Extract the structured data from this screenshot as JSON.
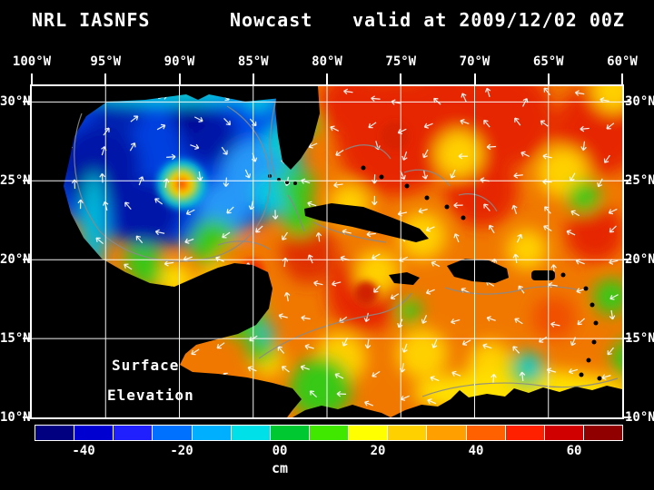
{
  "title": {
    "left": "NRL IASNFS",
    "center": "Nowcast",
    "right": "valid at 2009/12/02 00Z"
  },
  "map": {
    "lon_labels": [
      "100°W",
      "95°W",
      "90°W",
      "85°W",
      "80°W",
      "75°W",
      "70°W",
      "65°W",
      "60°W"
    ],
    "lat_labels": [
      "30°N",
      "25°N",
      "20°N",
      "15°N",
      "10°N"
    ],
    "annotation": {
      "line1": "Surface",
      "line2": "Elevation"
    }
  },
  "colorbar": {
    "unit": "cm",
    "min": -50,
    "max": 70,
    "tick_values": [
      -40,
      -20,
      0,
      20,
      40,
      60
    ],
    "tick_labels": [
      "-40",
      "-20",
      "00",
      "20",
      "40",
      "60"
    ],
    "segments": [
      "#000080",
      "#0000d0",
      "#2020ff",
      "#0070ff",
      "#00b0ff",
      "#00e0e8",
      "#00c830",
      "#40e800",
      "#ffff00",
      "#ffd000",
      "#ffa000",
      "#ff6000",
      "#ff2000",
      "#d00000",
      "#900000"
    ]
  },
  "chart_data": {
    "type": "heatmap",
    "title": "NRL IASNFS Nowcast valid at 2009/12/02 00Z",
    "field": "Surface Elevation",
    "unit": "cm",
    "x_axis": {
      "ticks": [
        "100°W",
        "95°W",
        "90°W",
        "85°W",
        "80°W",
        "75°W",
        "70°W",
        "65°W",
        "60°W"
      ],
      "range": [
        "100°W",
        "60°W"
      ]
    },
    "y_axis": {
      "ticks": [
        "30°N",
        "25°N",
        "20°N",
        "15°N",
        "10°N"
      ],
      "range": [
        "10°N",
        "31°N"
      ]
    },
    "colorbar": {
      "min": -50,
      "max": 70,
      "tick_values": [
        -40,
        -20,
        0,
        20,
        40,
        60
      ],
      "unit": "cm",
      "orientation": "horizontal-bottom"
    },
    "grid": "white 5-degree latitude/longitude lines",
    "features": [
      {
        "region": "western & central Gulf of Mexico",
        "approx_elevation_cm": -30
      },
      {
        "region": "anticyclonic warm eddy near 90W 25N",
        "approx_elevation_cm": 20
      },
      {
        "region": "Bay of Campeche",
        "approx_elevation_cm": 30
      },
      {
        "region": "Loop Current / Florida Straits band",
        "approx_elevation_cm": 0
      },
      {
        "region": "Atlantic east of the Bahamas",
        "approx_elevation_cm": 45
      },
      {
        "region": "central Caribbean Sea",
        "approx_elevation_cm": 35
      },
      {
        "region": "southwest Caribbean near Panama",
        "approx_elevation_cm": 5
      },
      {
        "region": "Venezuelan coastal band",
        "approx_elevation_cm": 15
      }
    ],
    "overlays": [
      "white surface-current vector arrows",
      "gray bathymetry/coastline contours",
      "black land mask"
    ]
  }
}
